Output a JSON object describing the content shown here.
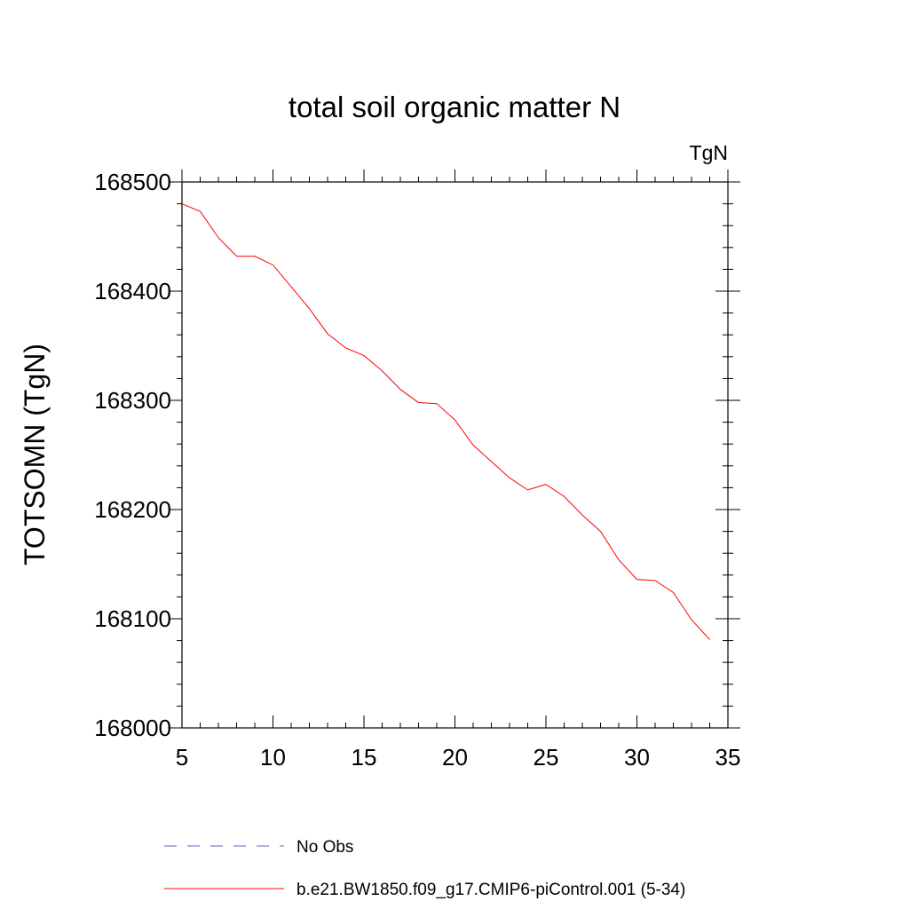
{
  "chart_data": {
    "type": "line",
    "title": "total soil organic matter N",
    "units_label": "TgN",
    "xlabel": "",
    "ylabel": "TOTSOMN  (TgN)",
    "xlim": [
      5,
      35
    ],
    "ylim": [
      168000,
      168500
    ],
    "xticks": [
      5,
      10,
      15,
      20,
      25,
      30,
      35
    ],
    "yticks": [
      168000,
      168100,
      168200,
      168300,
      168400,
      168500
    ],
    "grid": false,
    "legend_position": "bottom",
    "series": [
      {
        "name": "b.e21.BW1850.f09_g17.CMIP6-piControl.001 (5-34)",
        "color": "#ff0000",
        "style": "solid",
        "x": [
          5,
          6,
          7,
          8,
          9,
          10,
          11,
          12,
          13,
          14,
          15,
          16,
          17,
          18,
          19,
          20,
          21,
          22,
          23,
          24,
          25,
          26,
          27,
          28,
          29,
          30,
          31,
          32,
          33,
          34
        ],
        "values": [
          168480,
          168473,
          168449,
          168432,
          168432,
          168424,
          168404,
          168384,
          168361,
          168348,
          168341,
          168327,
          168310,
          168298,
          168297,
          168282,
          168259,
          168244,
          168229,
          168218,
          168223,
          168212,
          168195,
          168180,
          168154,
          168136,
          168135,
          168124,
          168099,
          168081
        ]
      }
    ],
    "legend": [
      {
        "label": "No Obs",
        "color": "#6a5acd",
        "style": "dashed"
      },
      {
        "label": "b.e21.BW1850.f09_g17.CMIP6-piControl.001 (5-34)",
        "color": "#ff0000",
        "style": "solid"
      }
    ]
  }
}
